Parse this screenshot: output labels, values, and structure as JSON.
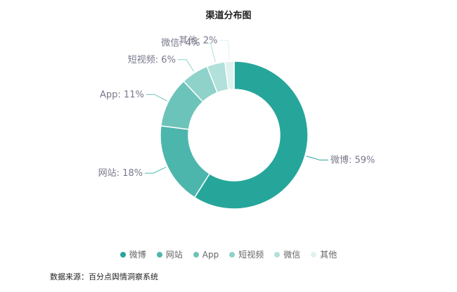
{
  "chart_data": {
    "type": "pie",
    "variant": "donut",
    "title": "渠道分布图",
    "label_format": "{name}: {value}%",
    "categories": [
      "微博",
      "网站",
      "App",
      "短视频",
      "微信",
      "其他"
    ],
    "values": [
      59,
      18,
      11,
      6,
      4,
      2
    ],
    "colors": [
      "#26a69a",
      "#4db6ac",
      "#6cc3b9",
      "#8ed2ca",
      "#b2e0da",
      "#def2ef"
    ],
    "legend_position": "bottom-center",
    "label_color": "#78788c"
  },
  "source_note": "数据来源：百分点舆情洞察系统"
}
